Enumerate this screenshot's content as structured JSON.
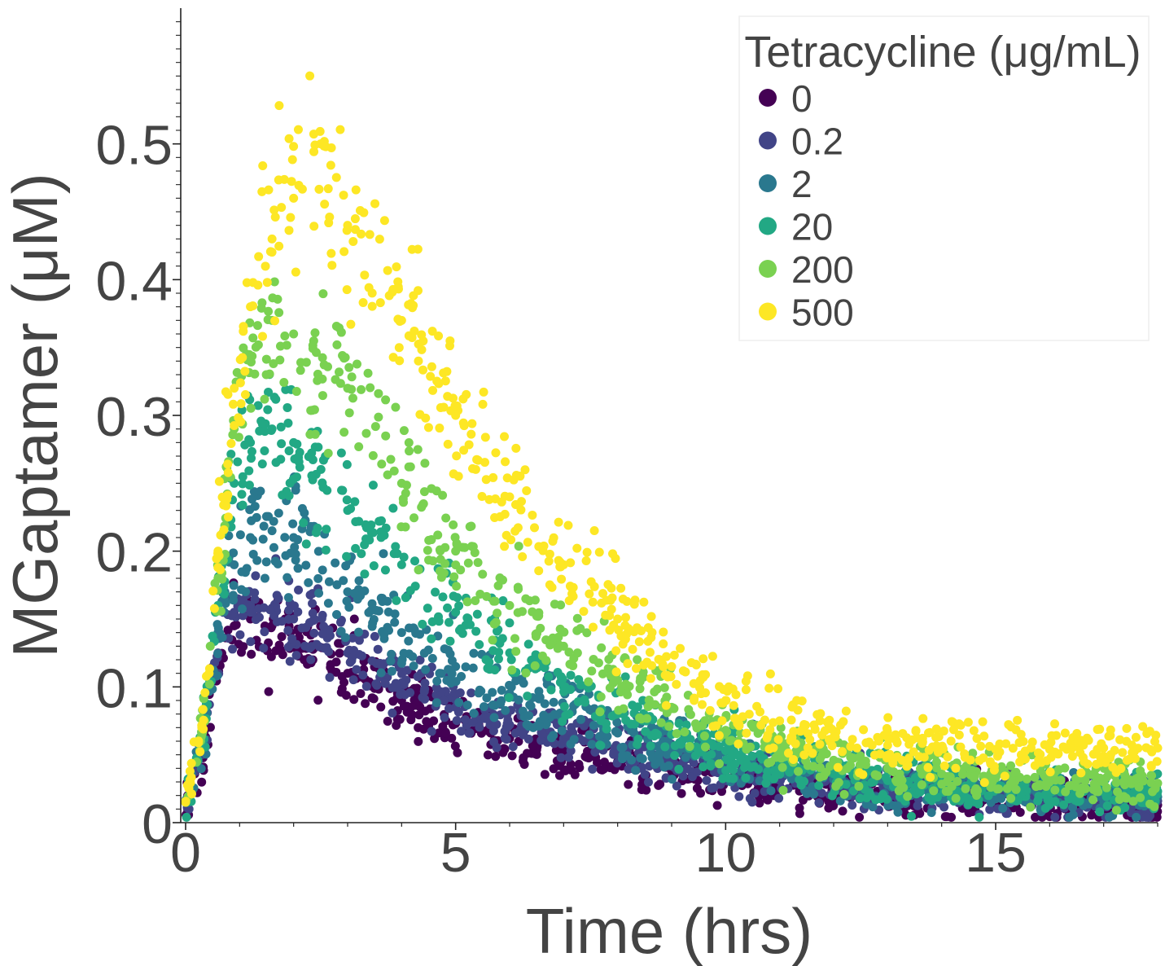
{
  "chart_data": {
    "type": "scatter",
    "title": "",
    "xlabel": "Time (hrs)",
    "ylabel": "MGaptamer (μM)",
    "xlim": [
      0,
      18
    ],
    "ylim": [
      0,
      0.6
    ],
    "x_ticks": [
      0,
      5,
      10,
      15
    ],
    "x_tick_labels": [
      "0",
      "5",
      "10",
      "15"
    ],
    "y_ticks": [
      0,
      0.1,
      0.2,
      0.3,
      0.4,
      0.5
    ],
    "y_tick_labels": [
      "0",
      "0.1",
      "0.2",
      "0.3",
      "0.4",
      "0.5"
    ],
    "grid": false,
    "legend": {
      "title": "Tetracycline (μg/mL)",
      "placement": "top-right"
    },
    "series": [
      {
        "name": "0",
        "color": "#440154",
        "x": [
          0,
          0.3,
          0.6,
          0.9,
          1.2,
          1.6,
          2.0,
          3.0,
          4.0,
          5.0,
          6.0,
          7.0,
          8.0,
          9.0,
          10.0,
          11.0,
          12.0,
          13.0,
          14.0,
          15.0,
          16.0,
          17.0,
          18.0
        ],
        "y": [
          0.015,
          0.05,
          0.12,
          0.145,
          0.15,
          0.145,
          0.135,
          0.11,
          0.09,
          0.073,
          0.062,
          0.053,
          0.045,
          0.038,
          0.032,
          0.027,
          0.023,
          0.02,
          0.018,
          0.016,
          0.015,
          0.014,
          0.013
        ]
      },
      {
        "name": "0.2",
        "color": "#414487",
        "x": [
          0,
          0.3,
          0.6,
          0.9,
          1.2,
          1.6,
          2.0,
          3.0,
          4.0,
          5.0,
          6.0,
          7.0,
          8.0,
          9.0,
          10.0,
          11.0,
          12.0,
          13.0,
          14.0,
          15.0,
          16.0,
          17.0,
          18.0
        ],
        "y": [
          0.015,
          0.05,
          0.125,
          0.155,
          0.16,
          0.158,
          0.15,
          0.125,
          0.102,
          0.085,
          0.072,
          0.062,
          0.053,
          0.045,
          0.038,
          0.032,
          0.027,
          0.024,
          0.021,
          0.019,
          0.018,
          0.017,
          0.016
        ]
      },
      {
        "name": "2",
        "color": "#2a788e",
        "x": [
          0,
          0.3,
          0.6,
          0.9,
          1.2,
          1.6,
          2.0,
          3.0,
          4.0,
          5.0,
          6.0,
          7.0,
          8.0,
          9.0,
          10.0,
          11.0,
          12.0,
          13.0,
          14.0,
          15.0,
          16.0,
          17.0,
          18.0
        ],
        "y": [
          0.015,
          0.055,
          0.14,
          0.19,
          0.21,
          0.215,
          0.21,
          0.17,
          0.14,
          0.115,
          0.095,
          0.08,
          0.066,
          0.055,
          0.046,
          0.038,
          0.032,
          0.028,
          0.025,
          0.022,
          0.021,
          0.02,
          0.019
        ]
      },
      {
        "name": "20",
        "color": "#22a884",
        "x": [
          0,
          0.3,
          0.6,
          0.9,
          1.2,
          1.6,
          2.0,
          3.0,
          4.0,
          5.0,
          6.0,
          7.0,
          8.0,
          9.0,
          10.0,
          11.0,
          12.0,
          13.0,
          14.0,
          15.0,
          16.0,
          17.0,
          18.0
        ],
        "y": [
          0.015,
          0.06,
          0.16,
          0.25,
          0.28,
          0.29,
          0.28,
          0.23,
          0.19,
          0.155,
          0.125,
          0.1,
          0.08,
          0.065,
          0.053,
          0.043,
          0.036,
          0.031,
          0.028,
          0.026,
          0.025,
          0.024,
          0.023
        ]
      },
      {
        "name": "200",
        "color": "#7ad151",
        "x": [
          0,
          0.3,
          0.6,
          0.9,
          1.2,
          1.6,
          2.0,
          3.0,
          4.0,
          5.0,
          6.0,
          7.0,
          8.0,
          9.0,
          10.0,
          11.0,
          12.0,
          13.0,
          14.0,
          15.0,
          16.0,
          17.0,
          18.0
        ],
        "y": [
          0.015,
          0.065,
          0.18,
          0.29,
          0.34,
          0.37,
          0.36,
          0.32,
          0.25,
          0.2,
          0.16,
          0.13,
          0.105,
          0.085,
          0.068,
          0.055,
          0.046,
          0.04,
          0.036,
          0.033,
          0.031,
          0.03,
          0.029
        ]
      },
      {
        "name": "500",
        "color": "#fde725",
        "x": [
          0,
          0.3,
          0.6,
          0.9,
          1.2,
          1.6,
          2.0,
          2.5,
          3.0,
          4.0,
          5.0,
          6.0,
          7.0,
          8.0,
          9.0,
          10.0,
          11.0,
          12.0,
          13.0,
          14.0,
          15.0,
          16.0,
          17.0,
          18.0
        ],
        "y": [
          0.015,
          0.07,
          0.2,
          0.32,
          0.38,
          0.43,
          0.46,
          0.5,
          0.44,
          0.37,
          0.3,
          0.24,
          0.19,
          0.15,
          0.115,
          0.09,
          0.075,
          0.063,
          0.057,
          0.055,
          0.054,
          0.054,
          0.055,
          0.055
        ]
      }
    ]
  }
}
